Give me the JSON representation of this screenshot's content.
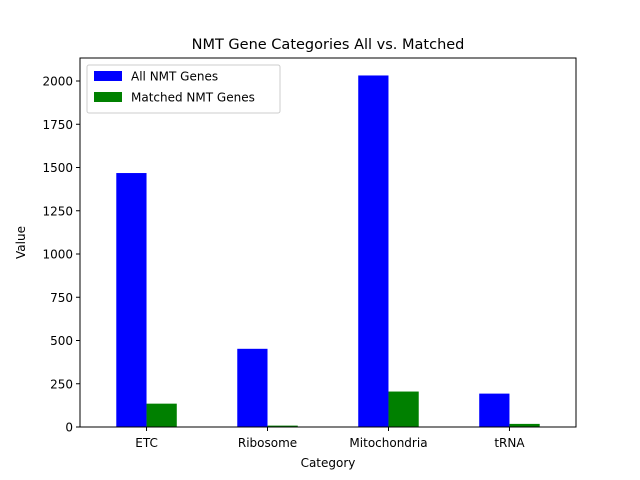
{
  "chart_data": {
    "type": "bar",
    "title": "NMT Gene Categories All vs. Matched",
    "xlabel": "Category",
    "ylabel": "Value",
    "categories": [
      "ETC",
      "Ribosome",
      "Mitochondria",
      "tRNA"
    ],
    "series": [
      {
        "name": "All NMT Genes",
        "color": "#0000ff",
        "values": [
          1468,
          452,
          2032,
          193
        ]
      },
      {
        "name": "Matched NMT Genes",
        "color": "#008000",
        "values": [
          135,
          8,
          205,
          18
        ]
      }
    ],
    "ylim": [
      0,
      2133
    ],
    "yticks": [
      0,
      250,
      500,
      750,
      1000,
      1250,
      1500,
      1750,
      2000
    ],
    "grid": false,
    "legend_position": "upper-left"
  }
}
